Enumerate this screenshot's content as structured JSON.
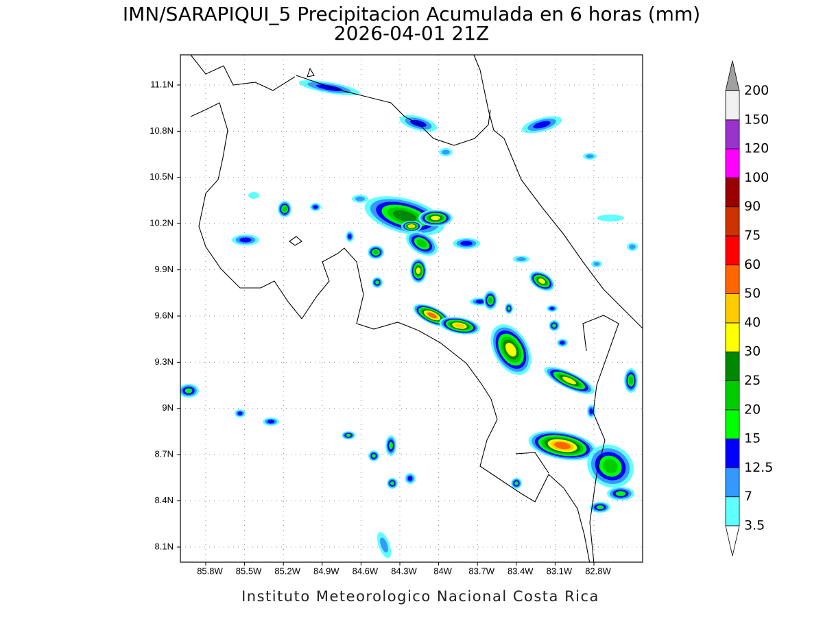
{
  "header": {
    "title": "IMN/SARAPIQUI_5 Precipitacion Acumulada en 6 horas (mm)",
    "subtitle": "2026-04-01 21Z"
  },
  "map": {
    "lat_ticks": [
      "11.1N",
      "10.8N",
      "10.5N",
      "10.2N",
      "9.9N",
      "9.6N",
      "9.3N",
      "9N",
      "8.7N",
      "8.4N",
      "8.1N"
    ],
    "lon_ticks": [
      "85.8W",
      "85.5W",
      "85.2W",
      "84.9W",
      "84.6W",
      "84.3W",
      "84W",
      "83.7W",
      "83.4W",
      "83.1W",
      "82.8W"
    ],
    "grid": true
  },
  "colorbar": {
    "labels": [
      "3.5",
      "7",
      "12.5",
      "15",
      "20",
      "25",
      "30",
      "40",
      "50",
      "60",
      "75",
      "90",
      "100",
      "120",
      "150",
      "200"
    ],
    "colors": [
      "#60ffff",
      "#3399ff",
      "#0000ff",
      "#00ff00",
      "#00cc00",
      "#008800",
      "#ffff00",
      "#ffcc00",
      "#ff6600",
      "#ff0000",
      "#cc3300",
      "#990000",
      "#ff00ff",
      "#9933cc",
      "#f0f0f0"
    ],
    "over_color": "#a0a0a0",
    "under_color": "#ffffff"
  },
  "footer": "Instituto Meteorologico Nacional Costa Rica"
}
